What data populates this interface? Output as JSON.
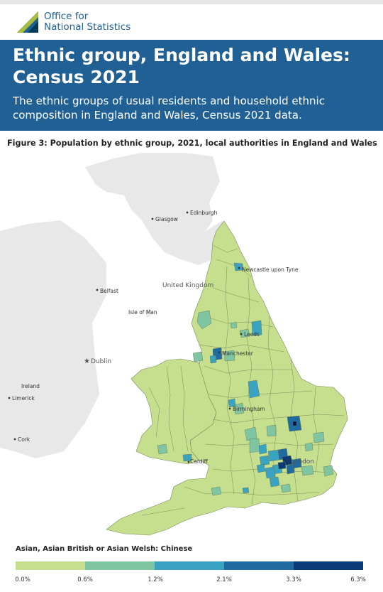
{
  "brand": {
    "name_line1": "Office for",
    "name_line2": "National Statistics",
    "logo_icon": "ons-logo-icon"
  },
  "header": {
    "title_line1": "Ethnic group, England and Wales:",
    "title_line2": "Census 2021",
    "subtitle": "The ethnic groups of usual residents and household ethnic composition in England and Wales, Census 2021 data."
  },
  "figure": {
    "title": "Figure 3: Population by ethnic group, 2021, local authorities in England and Wales"
  },
  "map": {
    "places": {
      "edinburgh": "Edinburgh",
      "glasgow": "Glasgow",
      "newcastle": "Newcastle upon Tyne",
      "united_kingdom": "United Kingdom",
      "belfast": "Belfast",
      "isle_of_man": "Isle of Man",
      "leeds": "Leeds",
      "manchester": "Manchester",
      "dublin": "Dublin",
      "ireland": "Ireland",
      "limerick": "Limerick",
      "birmingham": "Birmingham",
      "cork": "Cork",
      "cardiff": "Cardiff",
      "london": "London"
    },
    "colors": {
      "land_background": "#e8e8e8",
      "sea": "#ffffff",
      "borders": "#7a8a5a"
    }
  },
  "legend": {
    "title": "Asian, Asian British or Asian Welsh: Chinese",
    "colors": [
      "#c5df8f",
      "#7fc5a2",
      "#3aa3c2",
      "#1f6b9f",
      "#0c3a78",
      "#0a1248"
    ],
    "ticks": [
      "0.0%",
      "0.6%",
      "1.2%",
      "2.1%",
      "3.3%",
      "6.3%"
    ]
  }
}
